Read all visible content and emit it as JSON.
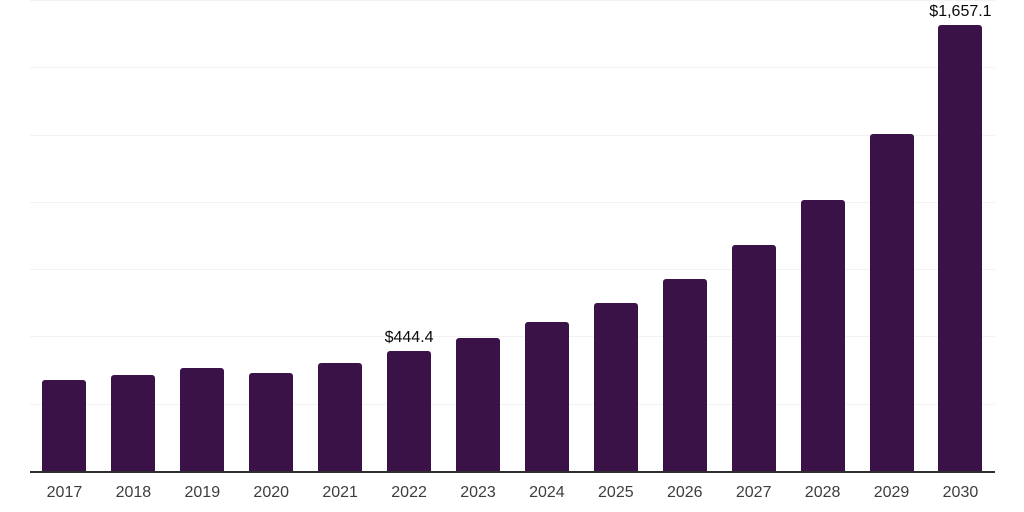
{
  "chart_data": {
    "type": "bar",
    "categories": [
      "2017",
      "2018",
      "2019",
      "2020",
      "2021",
      "2022",
      "2023",
      "2024",
      "2025",
      "2026",
      "2027",
      "2028",
      "2029",
      "2030"
    ],
    "values": [
      340,
      356,
      381,
      365,
      400,
      444.4,
      494,
      554,
      624,
      715,
      838,
      1008,
      1254,
      1657.1
    ],
    "bar_labels": {
      "2022": "$444.4",
      "2030": "$1,657.1"
    },
    "ylim": [
      0,
      1750
    ],
    "gridline_step": 250,
    "grid": "horizontal",
    "legend_position": "none",
    "bar_color": "#3A1248",
    "axis_line_color": "#2E2E2E",
    "gridline_color": "#F2F2F2",
    "x_label_color": "#3D3D3D",
    "value_label_color": "#0A0A0A",
    "background_color": "#FFFFFF"
  }
}
